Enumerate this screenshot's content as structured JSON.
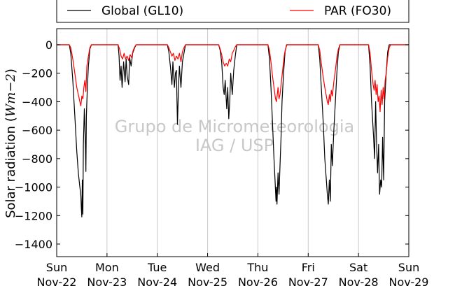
{
  "chart_data": {
    "type": "line",
    "ylabel": "Solar radiation (Wm-2)",
    "ylabel_math": "Wm−2",
    "ylim": [
      -1500,
      100
    ],
    "yticks": [
      0,
      -200,
      -400,
      -600,
      -800,
      -1000,
      -1200,
      -1400
    ],
    "xlim": [
      0,
      7
    ],
    "x_ticks": [
      {
        "day": "Sun",
        "date": "Nov-22"
      },
      {
        "day": "Mon",
        "date": "Nov-23"
      },
      {
        "day": "Tue",
        "date": "Nov-24"
      },
      {
        "day": "Wed",
        "date": "Nov-25"
      },
      {
        "day": "Thu",
        "date": "Nov-26"
      },
      {
        "day": "Fri",
        "date": "Nov-27"
      },
      {
        "day": "Sat",
        "date": "Nov-28"
      },
      {
        "day": "Sun",
        "date": "Nov-29"
      }
    ],
    "grid": "vertical",
    "legend": {
      "placement": "top"
    },
    "watermark": [
      "Grupo de Micrometeorologia",
      "IAG / USP"
    ],
    "series": [
      {
        "name": "Global (GL10)",
        "color": "#000000",
        "points": [
          [
            0.0,
            0
          ],
          [
            0.25,
            0
          ],
          [
            0.28,
            -60
          ],
          [
            0.32,
            -250
          ],
          [
            0.36,
            -500
          ],
          [
            0.4,
            -750
          ],
          [
            0.43,
            -900
          ],
          [
            0.46,
            -1000
          ],
          [
            0.48,
            -1060
          ],
          [
            0.49,
            -1150
          ],
          [
            0.5,
            -1210
          ],
          [
            0.51,
            -950
          ],
          [
            0.52,
            -1190
          ],
          [
            0.53,
            -700
          ],
          [
            0.55,
            -450
          ],
          [
            0.57,
            -700
          ],
          [
            0.58,
            -890
          ],
          [
            0.59,
            -500
          ],
          [
            0.61,
            -300
          ],
          [
            0.63,
            -150
          ],
          [
            0.66,
            -30
          ],
          [
            0.69,
            0
          ],
          [
            1.0,
            0
          ],
          [
            1.22,
            0
          ],
          [
            1.24,
            -80
          ],
          [
            1.26,
            -250
          ],
          [
            1.28,
            -150
          ],
          [
            1.3,
            -300
          ],
          [
            1.33,
            -120
          ],
          [
            1.36,
            -260
          ],
          [
            1.38,
            -100
          ],
          [
            1.4,
            -220
          ],
          [
            1.43,
            -280
          ],
          [
            1.45,
            -90
          ],
          [
            1.48,
            -150
          ],
          [
            1.51,
            -60
          ],
          [
            1.55,
            -20
          ],
          [
            1.58,
            0
          ],
          [
            2.0,
            0
          ],
          [
            2.2,
            0
          ],
          [
            2.23,
            -50
          ],
          [
            2.26,
            -150
          ],
          [
            2.29,
            -280
          ],
          [
            2.31,
            -120
          ],
          [
            2.34,
            -300
          ],
          [
            2.36,
            -200
          ],
          [
            2.38,
            -180
          ],
          [
            2.4,
            -560
          ],
          [
            2.42,
            -320
          ],
          [
            2.44,
            -150
          ],
          [
            2.47,
            -300
          ],
          [
            2.5,
            -120
          ],
          [
            2.53,
            -60
          ],
          [
            2.56,
            0
          ],
          [
            3.0,
            0
          ],
          [
            3.22,
            0
          ],
          [
            3.25,
            -40
          ],
          [
            3.28,
            -120
          ],
          [
            3.31,
            -300
          ],
          [
            3.33,
            -350
          ],
          [
            3.35,
            -250
          ],
          [
            3.38,
            -450
          ],
          [
            3.4,
            -300
          ],
          [
            3.42,
            -520
          ],
          [
            3.44,
            -400
          ],
          [
            3.46,
            -200
          ],
          [
            3.49,
            -350
          ],
          [
            3.52,
            -180
          ],
          [
            3.55,
            -80
          ],
          [
            3.58,
            0
          ],
          [
            4.0,
            0
          ],
          [
            4.2,
            0
          ],
          [
            4.23,
            -100
          ],
          [
            4.26,
            -300
          ],
          [
            4.29,
            -550
          ],
          [
            4.32,
            -800
          ],
          [
            4.34,
            -950
          ],
          [
            4.36,
            -1100
          ],
          [
            4.37,
            -1000
          ],
          [
            4.38,
            -1120
          ],
          [
            4.4,
            -900
          ],
          [
            4.42,
            -1050
          ],
          [
            4.44,
            -850
          ],
          [
            4.46,
            -650
          ],
          [
            4.48,
            -400
          ],
          [
            4.51,
            -200
          ],
          [
            4.54,
            -50
          ],
          [
            4.57,
            0
          ],
          [
            5.0,
            0
          ],
          [
            5.2,
            0
          ],
          [
            5.23,
            -100
          ],
          [
            5.26,
            -300
          ],
          [
            5.3,
            -550
          ],
          [
            5.33,
            -800
          ],
          [
            5.36,
            -950
          ],
          [
            5.38,
            -1050
          ],
          [
            5.4,
            -1120
          ],
          [
            5.42,
            -950
          ],
          [
            5.44,
            -1100
          ],
          [
            5.46,
            -700
          ],
          [
            5.48,
            -850
          ],
          [
            5.51,
            -600
          ],
          [
            5.54,
            -400
          ],
          [
            5.57,
            -200
          ],
          [
            5.6,
            -50
          ],
          [
            5.63,
            0
          ],
          [
            6.0,
            0
          ],
          [
            6.2,
            0
          ],
          [
            6.23,
            -150
          ],
          [
            6.26,
            -400
          ],
          [
            6.3,
            -650
          ],
          [
            6.32,
            -800
          ],
          [
            6.34,
            -400
          ],
          [
            6.36,
            -700
          ],
          [
            6.38,
            -900
          ],
          [
            6.4,
            -700
          ],
          [
            6.42,
            -1050
          ],
          [
            6.44,
            -950
          ],
          [
            6.46,
            -1000
          ],
          [
            6.48,
            -650
          ],
          [
            6.5,
            -950
          ],
          [
            6.52,
            -400
          ],
          [
            6.55,
            -200
          ],
          [
            6.58,
            -50
          ],
          [
            6.61,
            0
          ],
          [
            7.0,
            0
          ]
        ]
      },
      {
        "name": "PAR (FO30)",
        "color": "#ff0000",
        "points": [
          [
            0.0,
            0
          ],
          [
            0.25,
            0
          ],
          [
            0.28,
            -20
          ],
          [
            0.32,
            -100
          ],
          [
            0.36,
            -200
          ],
          [
            0.4,
            -300
          ],
          [
            0.43,
            -350
          ],
          [
            0.46,
            -400
          ],
          [
            0.48,
            -430
          ],
          [
            0.5,
            -360
          ],
          [
            0.52,
            -380
          ],
          [
            0.54,
            -300
          ],
          [
            0.56,
            -250
          ],
          [
            0.58,
            -330
          ],
          [
            0.6,
            -150
          ],
          [
            0.63,
            -80
          ],
          [
            0.66,
            -20
          ],
          [
            0.69,
            0
          ],
          [
            1.0,
            0
          ],
          [
            1.22,
            0
          ],
          [
            1.25,
            -30
          ],
          [
            1.28,
            -80
          ],
          [
            1.31,
            -100
          ],
          [
            1.34,
            -60
          ],
          [
            1.37,
            -100
          ],
          [
            1.4,
            -80
          ],
          [
            1.43,
            -110
          ],
          [
            1.46,
            -70
          ],
          [
            1.49,
            -90
          ],
          [
            1.52,
            -40
          ],
          [
            1.55,
            -15
          ],
          [
            1.58,
            0
          ],
          [
            2.0,
            0
          ],
          [
            2.2,
            0
          ],
          [
            2.23,
            -20
          ],
          [
            2.26,
            -50
          ],
          [
            2.29,
            -80
          ],
          [
            2.32,
            -60
          ],
          [
            2.35,
            -110
          ],
          [
            2.38,
            -80
          ],
          [
            2.41,
            -100
          ],
          [
            2.44,
            -60
          ],
          [
            2.47,
            -120
          ],
          [
            2.5,
            -50
          ],
          [
            2.53,
            -20
          ],
          [
            2.56,
            0
          ],
          [
            3.0,
            0
          ],
          [
            3.22,
            0
          ],
          [
            3.25,
            -30
          ],
          [
            3.28,
            -70
          ],
          [
            3.31,
            -120
          ],
          [
            3.34,
            -150
          ],
          [
            3.37,
            -130
          ],
          [
            3.4,
            -150
          ],
          [
            3.43,
            -100
          ],
          [
            3.46,
            -120
          ],
          [
            3.49,
            -60
          ],
          [
            3.52,
            -40
          ],
          [
            3.55,
            -15
          ],
          [
            3.58,
            0
          ],
          [
            4.0,
            0
          ],
          [
            4.2,
            0
          ],
          [
            4.23,
            -40
          ],
          [
            4.26,
            -120
          ],
          [
            4.29,
            -220
          ],
          [
            4.32,
            -300
          ],
          [
            4.35,
            -380
          ],
          [
            4.37,
            -400
          ],
          [
            4.4,
            -300
          ],
          [
            4.42,
            -380
          ],
          [
            4.44,
            -350
          ],
          [
            4.47,
            -250
          ],
          [
            4.5,
            -150
          ],
          [
            4.53,
            -60
          ],
          [
            4.56,
            -15
          ],
          [
            4.58,
            0
          ],
          [
            5.0,
            0
          ],
          [
            5.2,
            0
          ],
          [
            5.23,
            -40
          ],
          [
            5.26,
            -130
          ],
          [
            5.3,
            -230
          ],
          [
            5.33,
            -300
          ],
          [
            5.36,
            -360
          ],
          [
            5.38,
            -400
          ],
          [
            5.4,
            -420
          ],
          [
            5.42,
            -350
          ],
          [
            5.44,
            -400
          ],
          [
            5.46,
            -320
          ],
          [
            5.48,
            -360
          ],
          [
            5.51,
            -260
          ],
          [
            5.54,
            -180
          ],
          [
            5.57,
            -90
          ],
          [
            5.6,
            -30
          ],
          [
            5.63,
            0
          ],
          [
            6.0,
            0
          ],
          [
            6.2,
            0
          ],
          [
            6.23,
            -60
          ],
          [
            6.26,
            -180
          ],
          [
            6.29,
            -280
          ],
          [
            6.31,
            -320
          ],
          [
            6.33,
            -250
          ],
          [
            6.35,
            -350
          ],
          [
            6.37,
            -280
          ],
          [
            6.39,
            -400
          ],
          [
            6.41,
            -360
          ],
          [
            6.43,
            -470
          ],
          [
            6.45,
            -320
          ],
          [
            6.47,
            -420
          ],
          [
            6.49,
            -300
          ],
          [
            6.51,
            -380
          ],
          [
            6.53,
            -250
          ],
          [
            6.55,
            -200
          ],
          [
            6.58,
            -90
          ],
          [
            6.61,
            -20
          ],
          [
            6.64,
            0
          ],
          [
            7.0,
            0
          ]
        ]
      }
    ]
  }
}
